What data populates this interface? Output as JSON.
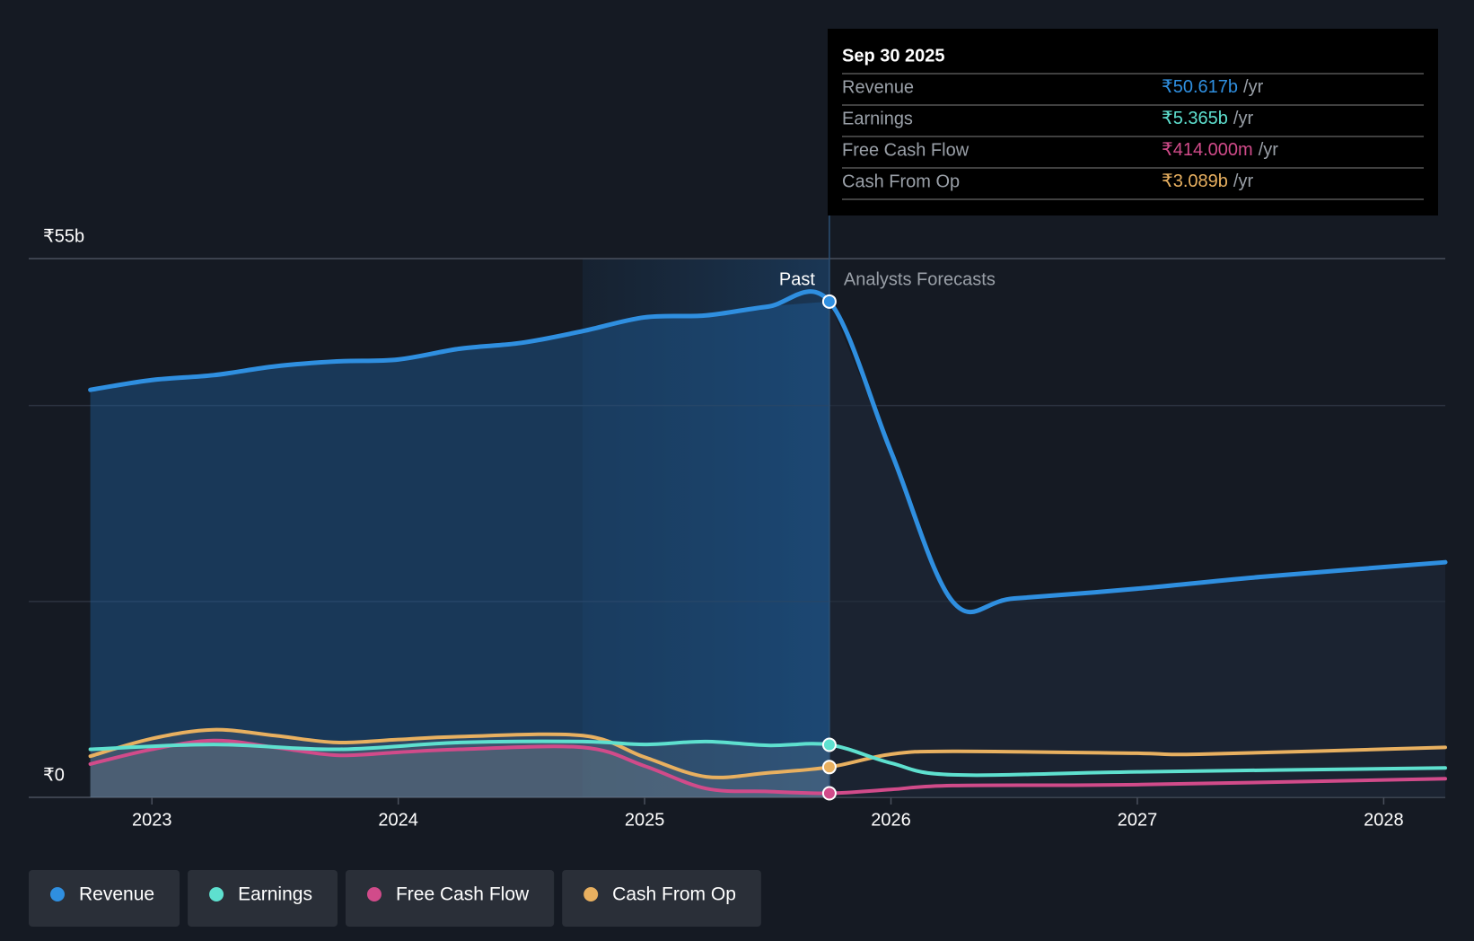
{
  "chart_data": {
    "type": "line",
    "xlim": [
      2022.5,
      2028.25
    ],
    "xticks": [
      2023,
      2024,
      2025,
      2026,
      2027,
      2028
    ],
    "ylim": [
      0,
      55
    ],
    "yticks": [
      {
        "value": 0,
        "label": "₹0"
      },
      {
        "value": 20,
        "label": null
      },
      {
        "value": 40,
        "label": null
      },
      {
        "value": 55,
        "label": "₹55b"
      }
    ],
    "grid": true,
    "forecast_from": 2025.75,
    "past_label": "Past",
    "forecast_label": "Analysts Forecasts",
    "series": [
      {
        "name": "Revenue",
        "color": "#2f8fe0",
        "x": [
          2022.75,
          2023.0,
          2023.25,
          2023.5,
          2023.75,
          2024.0,
          2024.25,
          2024.5,
          2024.75,
          2025.0,
          2025.25,
          2025.5,
          2025.75,
          2026.0,
          2026.25,
          2026.5,
          2027.0,
          2027.5,
          2028.25
        ],
        "values": [
          41.6,
          42.6,
          43.1,
          44.0,
          44.5,
          44.7,
          45.8,
          46.4,
          47.6,
          49.0,
          49.2,
          50.1,
          50.617,
          35.3,
          20.0,
          20.3,
          21.3,
          22.5,
          24.0
        ]
      },
      {
        "name": "Earnings",
        "color": "#5ee0cf",
        "x": [
          2022.75,
          2023.25,
          2023.75,
          2024.25,
          2024.75,
          2025.0,
          2025.25,
          2025.5,
          2025.75,
          2026.0,
          2026.25,
          2027.0,
          2028.25
        ],
        "values": [
          4.9,
          5.4,
          4.9,
          5.6,
          5.7,
          5.4,
          5.7,
          5.3,
          5.365,
          3.5,
          2.3,
          2.6,
          3.0
        ]
      },
      {
        "name": "Free Cash Flow",
        "color": "#d14b8a",
        "x": [
          2022.75,
          2023.0,
          2023.25,
          2023.5,
          2023.75,
          2024.0,
          2024.25,
          2024.75,
          2025.0,
          2025.25,
          2025.5,
          2025.75,
          2026.0,
          2026.25,
          2027.0,
          2028.25
        ],
        "values": [
          3.4,
          4.9,
          5.8,
          5.1,
          4.3,
          4.6,
          4.9,
          5.1,
          3.2,
          0.9,
          0.6,
          0.414,
          0.8,
          1.2,
          1.3,
          1.9
        ]
      },
      {
        "name": "Cash From Op",
        "color": "#e8b060",
        "x": [
          2022.75,
          2023.0,
          2023.25,
          2023.5,
          2023.75,
          2024.0,
          2024.25,
          2024.75,
          2025.0,
          2025.25,
          2025.5,
          2025.75,
          2026.0,
          2026.25,
          2027.0,
          2027.25,
          2028.25
        ],
        "values": [
          4.2,
          6.0,
          6.9,
          6.3,
          5.6,
          5.9,
          6.2,
          6.3,
          4.1,
          2.1,
          2.5,
          3.089,
          4.4,
          4.7,
          4.5,
          4.4,
          5.1
        ]
      }
    ],
    "tooltip": {
      "title": "Sep 30 2025",
      "rows": [
        {
          "label": "Revenue",
          "value": "₹50.617b",
          "unit": "/yr"
        },
        {
          "label": "Earnings",
          "value": "₹5.365b",
          "unit": "/yr"
        },
        {
          "label": "Free Cash Flow",
          "value": "₹414.000m",
          "unit": "/yr"
        },
        {
          "label": "Cash From Op",
          "value": "₹3.089b",
          "unit": "/yr"
        }
      ]
    }
  }
}
